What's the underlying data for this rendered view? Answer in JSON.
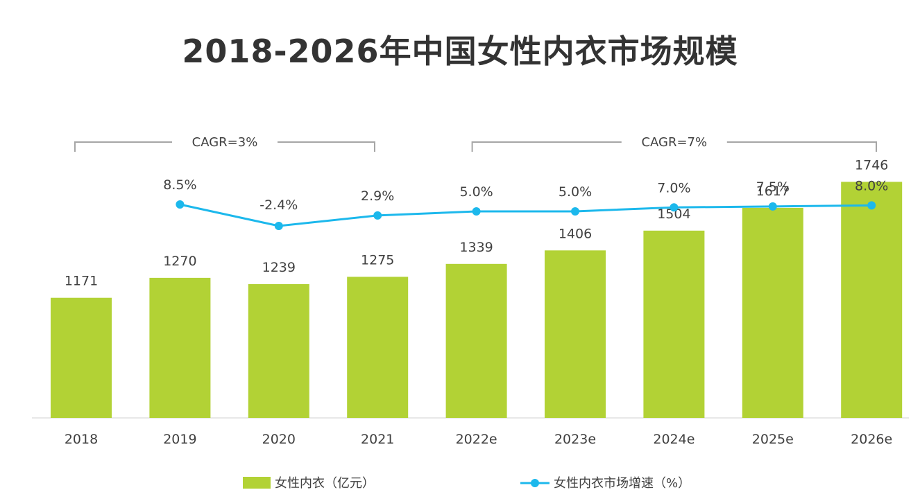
{
  "title": "2018-2026年中国女性内衣市场规模",
  "chart_data": {
    "type": "bar",
    "categories": [
      "2018",
      "2019",
      "2020",
      "2021",
      "2022e",
      "2023e",
      "2024e",
      "2025e",
      "2026e"
    ],
    "series": [
      {
        "name": "女性内衣（亿元）",
        "type": "bar",
        "values": [
          1171,
          1270,
          1239,
          1275,
          1339,
          1406,
          1504,
          1617,
          1746
        ],
        "labels": [
          "1171",
          "1270",
          "1239",
          "1275",
          "1339",
          "1406",
          "1504",
          "1617",
          "1746"
        ],
        "color": "#b2d235"
      },
      {
        "name": "女性内衣市场增速（%）",
        "type": "line",
        "values": [
          null,
          8.5,
          -2.4,
          2.9,
          5.0,
          5.0,
          7.0,
          7.5,
          8.0
        ],
        "labels": [
          "",
          "8.5%",
          "-2.4%",
          "2.9%",
          "5.0%",
          "5.0%",
          "7.0%",
          "7.5%",
          "8.0%"
        ],
        "color": "#1cb8ec"
      }
    ],
    "annotations": [
      {
        "text": "CAGR=3%",
        "from": "2018",
        "to": "2021"
      },
      {
        "text": "CAGR=7%",
        "from": "2022e",
        "to": "2026e"
      }
    ],
    "ylim": [
      0,
      1900
    ],
    "line_ylim": [
      -30,
      40
    ],
    "grid": false,
    "legend": "bottom"
  }
}
